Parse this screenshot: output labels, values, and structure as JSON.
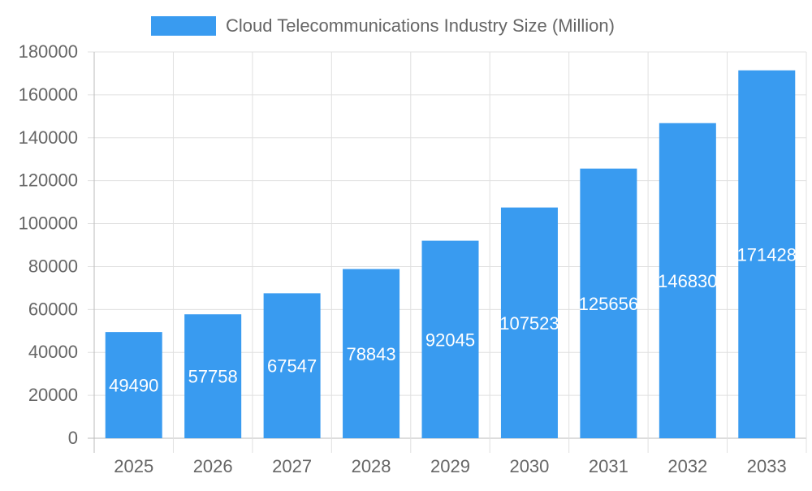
{
  "chart_data": {
    "type": "bar",
    "title": "",
    "xlabel": "",
    "ylabel": "",
    "categories": [
      "2025",
      "2026",
      "2027",
      "2028",
      "2029",
      "2030",
      "2031",
      "2032",
      "2033"
    ],
    "series": [
      {
        "name": "Cloud Telecommunications Industry Size (Million)",
        "values": [
          49490,
          57758,
          67547,
          78843,
          92045,
          107523,
          125656,
          146830,
          171428
        ],
        "color": "#399BF0"
      }
    ],
    "ylim": [
      0,
      180000
    ],
    "yticks": [
      0,
      20000,
      40000,
      60000,
      80000,
      100000,
      120000,
      140000,
      160000,
      180000
    ],
    "grid": true,
    "legend": "top-center",
    "data_labels": "inside-center"
  }
}
